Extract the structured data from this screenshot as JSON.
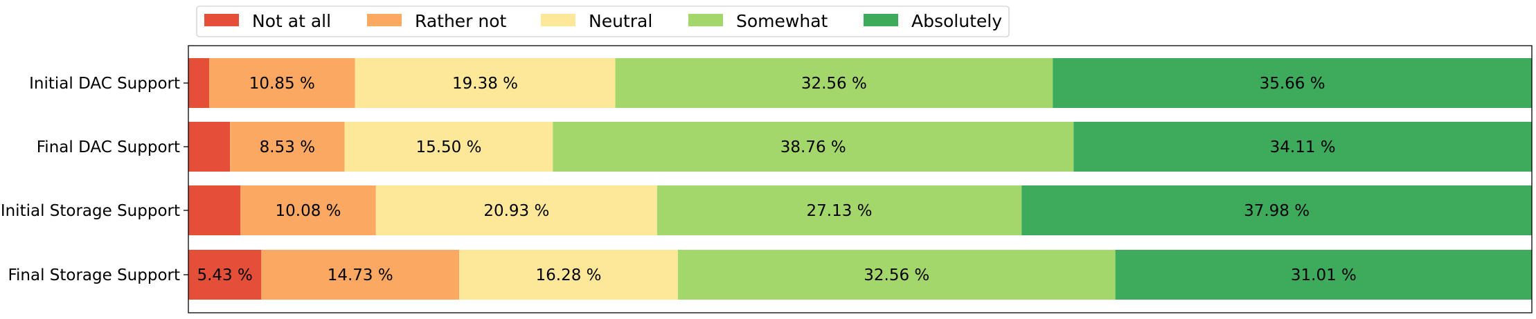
{
  "chart_data": {
    "type": "bar",
    "orientation": "horizontal",
    "stacked": true,
    "normalized_percent": true,
    "categories": [
      "Initial DAC Support",
      "Final DAC Support",
      "Initial Storage Support",
      "Final Storage Support"
    ],
    "series": [
      {
        "name": "Not at all",
        "color": "#e34f38",
        "values": [
          1.55,
          3.1,
          3.88,
          5.43
        ],
        "labels": [
          "",
          "",
          "",
          "5.43 %"
        ]
      },
      {
        "name": "Rather not",
        "color": "#fba862",
        "values": [
          10.85,
          8.53,
          10.08,
          14.73
        ],
        "labels": [
          "10.85 %",
          "8.53 %",
          "10.08 %",
          "14.73 %"
        ]
      },
      {
        "name": "Neutral",
        "color": "#fde89a",
        "values": [
          19.38,
          15.5,
          20.93,
          16.28
        ],
        "labels": [
          "19.38 %",
          "15.50 %",
          "20.93 %",
          "16.28 %"
        ]
      },
      {
        "name": "Somewhat",
        "color": "#a3d76b",
        "values": [
          32.56,
          38.76,
          27.13,
          32.56
        ],
        "labels": [
          "32.56 %",
          "38.76 %",
          "27.13 %",
          "32.56 %"
        ]
      },
      {
        "name": "Absolutely",
        "color": "#3eaa5c",
        "values": [
          35.66,
          34.11,
          37.98,
          31.01
        ],
        "labels": [
          "35.66 %",
          "34.11 %",
          "37.98 %",
          "31.01 %"
        ]
      }
    ],
    "xlim": [
      0,
      100
    ],
    "title": "",
    "xlabel": "",
    "ylabel": "",
    "grid": false,
    "legend_position": "top-left, above plot"
  }
}
